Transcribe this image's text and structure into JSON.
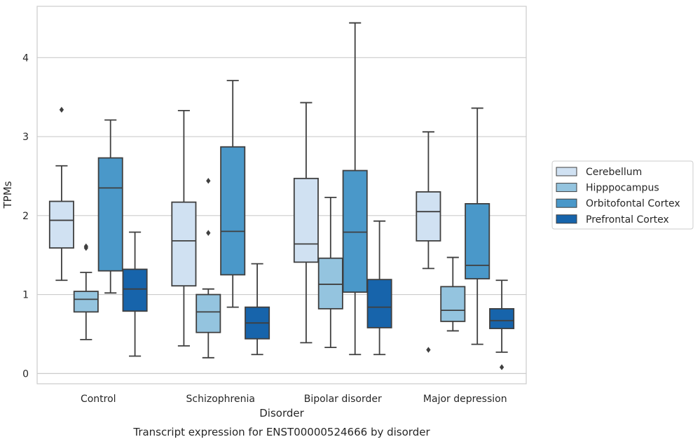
{
  "chart_data": {
    "type": "box",
    "title": "",
    "caption": "Transcript expression for ENST00000524666 by disorder",
    "xlabel": "Disorder",
    "ylabel": "TPMs",
    "ylim": [
      -0.13,
      4.65
    ],
    "yticks": [
      "0",
      "1",
      "2",
      "3",
      "4"
    ],
    "grid": "horizontal",
    "legend_position": "right",
    "categories": [
      "Control",
      "Schizophrenia",
      "Bipolar disorder",
      "Major depression"
    ],
    "series": [
      {
        "name": "Cerebellum",
        "color": "#d0e1f2",
        "boxes": [
          {
            "whisker_low": 1.18,
            "q1": 1.59,
            "median": 1.94,
            "q3": 2.18,
            "whisker_high": 2.63,
            "outliers": [
              3.34
            ]
          },
          {
            "whisker_low": 0.35,
            "q1": 1.11,
            "median": 1.68,
            "q3": 2.17,
            "whisker_high": 3.33,
            "outliers": []
          },
          {
            "whisker_low": 0.39,
            "q1": 1.41,
            "median": 1.64,
            "q3": 2.47,
            "whisker_high": 3.43,
            "outliers": []
          },
          {
            "whisker_low": 1.33,
            "q1": 1.68,
            "median": 2.05,
            "q3": 2.3,
            "whisker_high": 3.06,
            "outliers": [
              0.3
            ]
          }
        ]
      },
      {
        "name": "Hipppocampus",
        "color": "#94c4df",
        "boxes": [
          {
            "whisker_low": 0.43,
            "q1": 0.78,
            "median": 0.94,
            "q3": 1.04,
            "whisker_high": 1.28,
            "outliers": [
              1.59,
              1.61
            ]
          },
          {
            "whisker_low": 0.2,
            "q1": 0.52,
            "median": 0.78,
            "q3": 1.0,
            "whisker_high": 1.07,
            "outliers": [
              1.78,
              2.44
            ]
          },
          {
            "whisker_low": 0.33,
            "q1": 0.82,
            "median": 1.13,
            "q3": 1.46,
            "whisker_high": 2.23,
            "outliers": []
          },
          {
            "whisker_low": 0.54,
            "q1": 0.66,
            "median": 0.8,
            "q3": 1.1,
            "whisker_high": 1.47,
            "outliers": []
          }
        ]
      },
      {
        "name": "Orbitofontal Cortex",
        "color": "#4a98c9",
        "boxes": [
          {
            "whisker_low": 1.02,
            "q1": 1.3,
            "median": 2.35,
            "q3": 2.73,
            "whisker_high": 3.21,
            "outliers": []
          },
          {
            "whisker_low": 0.84,
            "q1": 1.25,
            "median": 1.8,
            "q3": 2.87,
            "whisker_high": 3.71,
            "outliers": []
          },
          {
            "whisker_low": 0.24,
            "q1": 1.03,
            "median": 1.79,
            "q3": 2.57,
            "whisker_high": 4.44,
            "outliers": []
          },
          {
            "whisker_low": 0.37,
            "q1": 1.2,
            "median": 1.37,
            "q3": 2.15,
            "whisker_high": 3.36,
            "outliers": []
          }
        ]
      },
      {
        "name": "Prefrontal Cortex",
        "color": "#1764ab",
        "boxes": [
          {
            "whisker_low": 0.22,
            "q1": 0.79,
            "median": 1.07,
            "q3": 1.32,
            "whisker_high": 1.79,
            "outliers": []
          },
          {
            "whisker_low": 0.24,
            "q1": 0.44,
            "median": 0.64,
            "q3": 0.84,
            "whisker_high": 1.39,
            "outliers": []
          },
          {
            "whisker_low": 0.24,
            "q1": 0.58,
            "median": 0.84,
            "q3": 1.19,
            "whisker_high": 1.93,
            "outliers": []
          },
          {
            "whisker_low": 0.27,
            "q1": 0.57,
            "median": 0.67,
            "q3": 0.82,
            "whisker_high": 1.18,
            "outliers": [
              0.08
            ]
          }
        ]
      }
    ]
  }
}
